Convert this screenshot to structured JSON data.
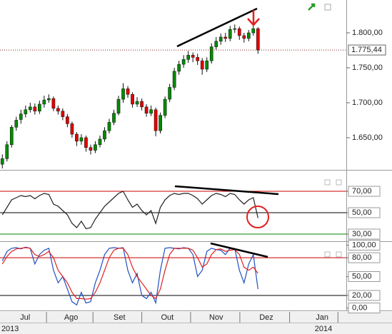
{
  "chart_data": [
    {
      "type": "candlestick",
      "open": [
        1612,
        1620,
        1640,
        1665,
        1676,
        1684,
        1690,
        1694,
        1688,
        1698,
        1704,
        1706,
        1692,
        1688,
        1680,
        1670,
        1655,
        1645,
        1650,
        1636,
        1632,
        1640,
        1648,
        1660,
        1672,
        1685,
        1705,
        1720,
        1712,
        1698,
        1702,
        1694,
        1685,
        1690,
        1660,
        1682,
        1705,
        1722,
        1745,
        1755,
        1762,
        1768,
        1765,
        1760,
        1748,
        1760,
        1780,
        1788,
        1794,
        1792,
        1805,
        1806,
        1796,
        1792,
        1800,
        1806
      ],
      "high": [
        1626,
        1645,
        1668,
        1680,
        1690,
        1696,
        1700,
        1699,
        1703,
        1710,
        1712,
        1709,
        1696,
        1692,
        1684,
        1673,
        1658,
        1655,
        1653,
        1640,
        1645,
        1653,
        1665,
        1677,
        1690,
        1710,
        1728,
        1724,
        1715,
        1708,
        1706,
        1698,
        1696,
        1693,
        1686,
        1709,
        1727,
        1750,
        1760,
        1768,
        1774,
        1772,
        1770,
        1764,
        1765,
        1785,
        1794,
        1799,
        1800,
        1810,
        1812,
        1809,
        1800,
        1804,
        1812,
        1808
      ],
      "low": [
        1606,
        1616,
        1636,
        1660,
        1670,
        1679,
        1686,
        1683,
        1684,
        1693,
        1700,
        1688,
        1683,
        1675,
        1665,
        1650,
        1638,
        1640,
        1630,
        1626,
        1628,
        1636,
        1644,
        1656,
        1668,
        1682,
        1700,
        1707,
        1693,
        1694,
        1689,
        1680,
        1681,
        1652,
        1656,
        1678,
        1701,
        1718,
        1740,
        1750,
        1757,
        1758,
        1754,
        1740,
        1744,
        1756,
        1776,
        1783,
        1787,
        1788,
        1800,
        1790,
        1786,
        1788,
        1796,
        1770
      ],
      "close": [
        1620,
        1640,
        1665,
        1675,
        1684,
        1690,
        1694,
        1688,
        1698,
        1704,
        1706,
        1692,
        1688,
        1680,
        1670,
        1655,
        1645,
        1650,
        1636,
        1632,
        1640,
        1648,
        1660,
        1672,
        1685,
        1705,
        1720,
        1712,
        1698,
        1702,
        1694,
        1685,
        1690,
        1660,
        1682,
        1705,
        1722,
        1745,
        1755,
        1762,
        1768,
        1765,
        1760,
        1748,
        1760,
        1780,
        1788,
        1794,
        1792,
        1805,
        1806,
        1796,
        1792,
        1800,
        1806,
        1775.44
      ],
      "up_color": "#008a00",
      "down_color": "#e00000",
      "xlim": [
        -0.5,
        74
      ],
      "xticks": [
        {
          "value": 4.9,
          "label": "Jul"
        },
        {
          "value": 14.8,
          "label": "Ago"
        },
        {
          "value": 25.2,
          "label": "Set"
        },
        {
          "value": 35.5,
          "label": "Out"
        },
        {
          "value": 46,
          "label": "Nov"
        },
        {
          "value": 56.8,
          "label": "Dez"
        },
        {
          "value": 68.8,
          "label": "Jan"
        }
      ],
      "xticks_minor": [
        9.5,
        19.5,
        30,
        40.5,
        51.1,
        61.8,
        72.2
      ],
      "year_labels": [
        {
          "value": -0.2,
          "label": "2013"
        },
        {
          "value": 67.2,
          "label": "2014"
        }
      ],
      "ylim": [
        1605,
        1847
      ],
      "yticks": [
        {
          "value": 1650,
          "label": "1.650,00"
        },
        {
          "value": 1700,
          "label": "1.700,00"
        },
        {
          "value": 1750,
          "label": "1.750,00"
        },
        {
          "value": 1800,
          "label": "1.800,00"
        }
      ],
      "last_value": {
        "value": 1775.44,
        "label": "1.775,44"
      }
    },
    {
      "type": "line",
      "values": [
        48,
        55,
        62,
        64,
        66,
        65,
        66,
        63,
        66,
        68,
        67,
        58,
        56,
        52,
        48,
        40,
        36,
        42,
        35,
        36,
        44,
        50,
        56,
        60,
        64,
        68,
        70,
        62,
        55,
        58,
        52,
        48,
        52,
        40,
        55,
        62,
        66,
        68,
        67,
        68,
        68,
        66,
        63,
        58,
        62,
        66,
        68,
        67,
        65,
        68,
        67,
        62,
        58,
        62,
        64,
        45
      ],
      "color": "#222222",
      "ylim": [
        24,
        88.7
      ],
      "yticks": [
        {
          "value": 30,
          "label": "30,00"
        },
        {
          "value": 50,
          "label": "50,00"
        },
        {
          "value": 70,
          "label": "70,00"
        }
      ],
      "hlines": [
        {
          "y": 70,
          "color": "#cc0000"
        },
        {
          "y": 50,
          "color": "#000000"
        },
        {
          "y": 30,
          "color": "#008000"
        }
      ]
    },
    {
      "type": "line",
      "series": [
        {
          "color": "#2050c0",
          "values": [
            75,
            90,
            95,
            96,
            94,
            97,
            95,
            70,
            85,
            92,
            95,
            60,
            40,
            50,
            30,
            10,
            5,
            25,
            8,
            10,
            40,
            60,
            85,
            95,
            96,
            95,
            96,
            60,
            40,
            55,
            20,
            15,
            25,
            8,
            60,
            95,
            96,
            95,
            94,
            96,
            95,
            85,
            50,
            60,
            90,
            95,
            93,
            92,
            85,
            95,
            94,
            60,
            40,
            70,
            85,
            30
          ]
        },
        {
          "color": "#e02020",
          "values": [
            70,
            82,
            90,
            94,
            95,
            96,
            95,
            85,
            82,
            85,
            90,
            80,
            60,
            50,
            40,
            25,
            15,
            15,
            14,
            15,
            25,
            40,
            60,
            80,
            92,
            95,
            95,
            85,
            65,
            50,
            40,
            30,
            20,
            15,
            30,
            60,
            85,
            95,
            95,
            95,
            95,
            92,
            80,
            65,
            70,
            85,
            93,
            94,
            90,
            92,
            93,
            85,
            65,
            60,
            65,
            55
          ]
        }
      ],
      "ylim": [
        -0.5,
        104
      ],
      "yticks": [
        {
          "value": 0,
          "label": "0,00"
        },
        {
          "value": 20,
          "label": "20,00"
        },
        {
          "value": 50,
          "label": "50,00"
        },
        {
          "value": 80,
          "label": "80,00"
        },
        {
          "value": 100,
          "label": "100,00"
        }
      ],
      "hlines": [
        {
          "y": 80,
          "color": "#cc0000"
        },
        {
          "y": 20,
          "color": "#000000"
        }
      ]
    }
  ]
}
